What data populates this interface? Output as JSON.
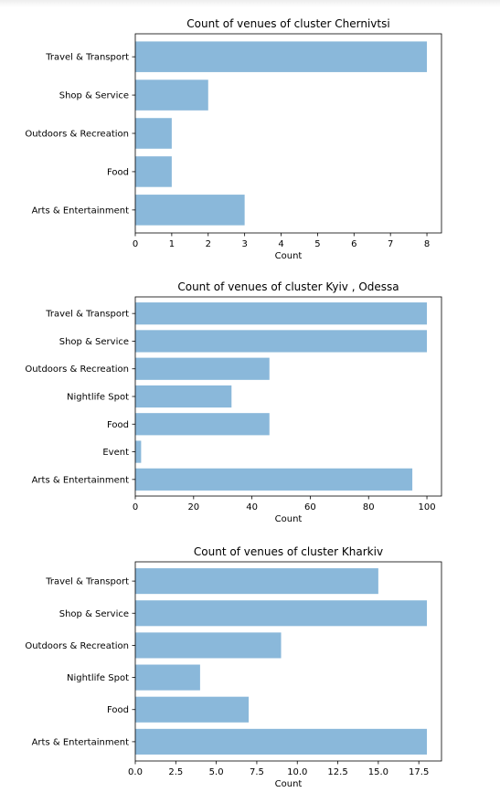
{
  "chart_data": [
    {
      "type": "bar",
      "orientation": "horizontal",
      "title": "Count of venues of cluster Chernivtsi",
      "xlabel": "Count",
      "ylabel": "",
      "categories": [
        "Arts & Entertainment",
        "Food",
        "Outdoors & Recreation",
        "Shop & Service",
        "Travel & Transport"
      ],
      "values": [
        3,
        1,
        1,
        2,
        8
      ],
      "xlim": [
        0,
        8.4
      ],
      "xticks": [
        0,
        1,
        2,
        3,
        4,
        5,
        6,
        7,
        8
      ],
      "xtick_labels": [
        "0",
        "1",
        "2",
        "3",
        "4",
        "5",
        "6",
        "7",
        "8"
      ],
      "bar_color": "#8ab8da"
    },
    {
      "type": "bar",
      "orientation": "horizontal",
      "title": "Count of venues of cluster Kyiv , Odessa",
      "xlabel": "Count",
      "ylabel": "",
      "categories": [
        "Arts & Entertainment",
        "Event",
        "Food",
        "Nightlife Spot",
        "Outdoors & Recreation",
        "Shop & Service",
        "Travel & Transport"
      ],
      "values": [
        95,
        2,
        46,
        33,
        46,
        100,
        100
      ],
      "xlim": [
        0,
        105
      ],
      "xticks": [
        0,
        20,
        40,
        60,
        80,
        100
      ],
      "xtick_labels": [
        "0",
        "20",
        "40",
        "60",
        "80",
        "100"
      ],
      "bar_color": "#8ab8da"
    },
    {
      "type": "bar",
      "orientation": "horizontal",
      "title": "Count of venues of cluster Kharkiv",
      "xlabel": "Count",
      "ylabel": "",
      "categories": [
        "Arts & Entertainment",
        "Food",
        "Nightlife Spot",
        "Outdoors & Recreation",
        "Shop & Service",
        "Travel & Transport"
      ],
      "values": [
        18,
        7,
        4,
        9,
        18,
        15
      ],
      "xlim": [
        0,
        18.9
      ],
      "xticks": [
        0,
        2.5,
        5,
        7.5,
        10,
        12.5,
        15,
        17.5
      ],
      "xtick_labels": [
        "0.0",
        "2.5",
        "5.0",
        "7.5",
        "10.0",
        "12.5",
        "15.0",
        "17.5"
      ],
      "bar_color": "#8ab8da"
    }
  ]
}
